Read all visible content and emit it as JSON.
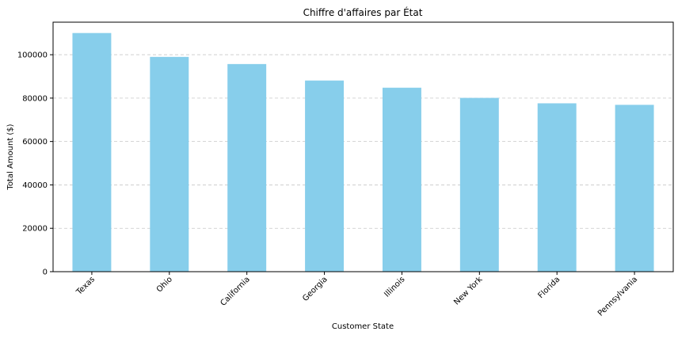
{
  "chart_data": {
    "type": "bar",
    "title": "Chiffre d'affaires par État",
    "xlabel": "Customer State",
    "ylabel": "Total Amount ($)",
    "categories": [
      "Texas",
      "Ohio",
      "California",
      "Georgia",
      "Illinois",
      "New York",
      "Florida",
      "Pennsylvania"
    ],
    "values": [
      110000,
      99000,
      95700,
      88100,
      84800,
      80100,
      77600,
      76900
    ],
    "ylim": [
      0,
      115000
    ],
    "yticks": [
      0,
      20000,
      40000,
      60000,
      80000,
      100000
    ],
    "grid": "y-dashed",
    "bar_color": "#87ceeb"
  }
}
